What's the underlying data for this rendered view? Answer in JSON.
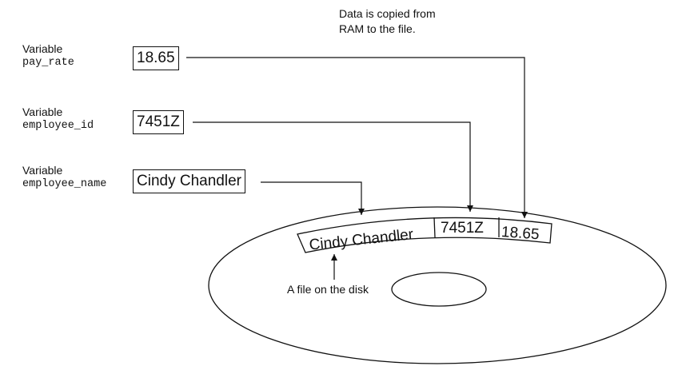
{
  "caption": {
    "line1": "Data is copied from",
    "line2": "RAM to the file."
  },
  "variables": [
    {
      "label": "Variable",
      "name": "pay_rate",
      "value": "18.65"
    },
    {
      "label": "Variable",
      "name": "employee_id",
      "value": "7451Z"
    },
    {
      "label": "Variable",
      "name": "employee_name",
      "value": "Cindy Chandler"
    }
  ],
  "file_record": {
    "fields": [
      "Cindy Chandler",
      "7451Z",
      "18.65"
    ]
  },
  "disk": {
    "label": "A file on the disk"
  }
}
